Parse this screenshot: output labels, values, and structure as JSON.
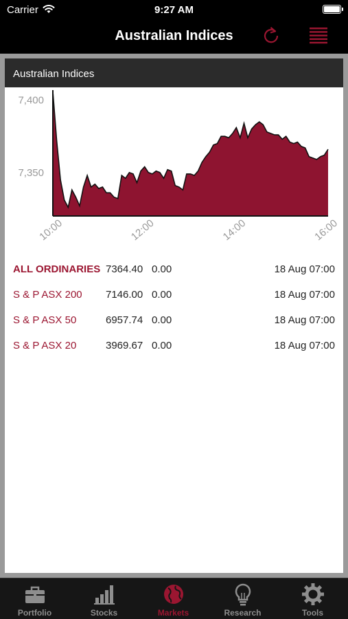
{
  "status_bar": {
    "carrier": "Carrier",
    "time": "9:27 AM"
  },
  "nav": {
    "title": "Australian Indices",
    "refresh_icon": "refresh-icon",
    "menu_icon": "list-icon"
  },
  "panel": {
    "title": "Australian Indices"
  },
  "chart_data": {
    "type": "area",
    "title": "",
    "xlabel": "",
    "ylabel": "",
    "x_ticks": [
      "10:00",
      "12:00",
      "14:00",
      "16:00"
    ],
    "y_ticks": [
      "7,400",
      "7,350"
    ],
    "ylim": [
      7320,
      7405
    ],
    "grid": false,
    "color": "#8e1430",
    "x": [
      "10:00",
      "10:05",
      "10:10",
      "10:15",
      "10:20",
      "10:25",
      "10:30",
      "10:35",
      "10:40",
      "10:45",
      "10:50",
      "10:55",
      "11:00",
      "11:05",
      "11:10",
      "11:15",
      "11:20",
      "11:25",
      "11:30",
      "11:35",
      "11:40",
      "11:45",
      "11:50",
      "11:55",
      "12:00",
      "12:05",
      "12:10",
      "12:15",
      "12:20",
      "12:25",
      "12:30",
      "12:35",
      "12:40",
      "12:45",
      "12:50",
      "12:55",
      "13:00",
      "13:05",
      "13:10",
      "13:15",
      "13:20",
      "13:25",
      "13:30",
      "13:35",
      "13:40",
      "13:45",
      "13:50",
      "13:55",
      "14:00",
      "14:05",
      "14:10",
      "14:15",
      "14:20",
      "14:25",
      "14:30",
      "14:35",
      "14:40",
      "14:45",
      "14:50",
      "14:55",
      "15:00",
      "15:05",
      "15:10",
      "15:15",
      "15:20",
      "15:25",
      "15:30",
      "15:35",
      "15:40",
      "15:45",
      "15:50",
      "15:55",
      "16:00"
    ],
    "values": [
      7406,
      7372,
      7345,
      7331,
      7326,
      7338,
      7333,
      7327,
      7340,
      7348,
      7340,
      7342,
      7339,
      7340,
      7336,
      7336,
      7333,
      7332,
      7348,
      7346,
      7350,
      7349,
      7343,
      7351,
      7354,
      7350,
      7349,
      7351,
      7350,
      7346,
      7352,
      7351,
      7341,
      7340,
      7338,
      7349,
      7349,
      7348,
      7351,
      7357,
      7361,
      7364,
      7369,
      7370,
      7375,
      7375,
      7374,
      7377,
      7381,
      7374,
      7384,
      7374,
      7380,
      7383,
      7385,
      7383,
      7378,
      7377,
      7376,
      7376,
      7373,
      7375,
      7371,
      7370,
      7371,
      7368,
      7367,
      7361,
      7360,
      7359,
      7361,
      7362,
      7366
    ]
  },
  "indices": [
    {
      "name": "ALL ORDINARIES",
      "value": "7364.40",
      "change": "0.00",
      "time": "18 Aug 07:00"
    },
    {
      "name": "S & P ASX 200",
      "value": "7146.00",
      "change": "0.00",
      "time": "18 Aug 07:00"
    },
    {
      "name": "S & P ASX 50",
      "value": "6957.74",
      "change": "0.00",
      "time": "18 Aug 07:00"
    },
    {
      "name": "S & P ASX 20",
      "value": "3969.67",
      "change": "0.00",
      "time": "18 Aug 07:00"
    }
  ],
  "tabs": [
    {
      "label": "Portfolio",
      "icon": "briefcase-icon",
      "active": false
    },
    {
      "label": "Stocks",
      "icon": "bar-chart-icon",
      "active": false
    },
    {
      "label": "Markets",
      "icon": "globe-icon",
      "active": true
    },
    {
      "label": "Research",
      "icon": "lightbulb-icon",
      "active": false
    },
    {
      "label": "Tools",
      "icon": "gear-icon",
      "active": false
    }
  ],
  "colors": {
    "accent": "#9b1631",
    "inactive": "#8e8e8e",
    "header": "#2b2b2b"
  }
}
